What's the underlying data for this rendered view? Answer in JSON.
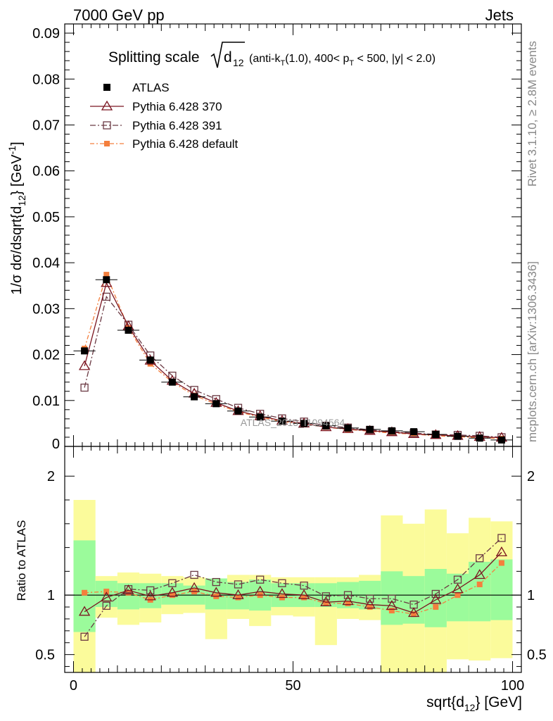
{
  "header": {
    "left": "7000 GeV pp",
    "right": "Jets"
  },
  "side_text": {
    "rivet": "Rivet 3.1.10, ≥ 2.8M events",
    "mcplots": "mcplots.cern.ch [arXiv:1306.3436]"
  },
  "watermark": "ATLAS_2013_I1094564",
  "chart_data": {
    "type": "line",
    "title": "Splitting scale √d12 (anti-kT(1.0), 400< pT < 500, |y| < 2.0)",
    "title_parts": {
      "prefix": "Splitting scale",
      "sqrt_arg": "d",
      "sqrt_sub": "12",
      "rest": "(anti-k",
      "sub_T1": "T",
      "rest2": "(1.0), 400< p",
      "sub_T2": "T",
      "rest3": " < 500, |y| < 2.0)"
    },
    "xlabel": "sqrt{d12} [GeV]",
    "xlabel_parts": {
      "main": "sqrt{d",
      "sub": "12",
      "end": "} [GeV]"
    },
    "ylabel": "1/σ dσ/dsqrt{d12} [GeV^-1]",
    "ylabel_parts": {
      "main": "1/σ dσ/dsqrt{d",
      "sub": "12",
      "mid": "} [GeV",
      "sup": "-1",
      "end": "]"
    },
    "ratio_ylabel": "Ratio to ATLAS",
    "xlim": [
      -2,
      102
    ],
    "ylim": [
      0,
      0.092
    ],
    "ratio_ylim": [
      0.35,
      2.25
    ],
    "x_ticks": [
      0,
      50,
      100
    ],
    "x_tick_labels": [
      "0",
      "50",
      "100"
    ],
    "y_ticks": [
      0.01,
      0.02,
      0.03,
      0.04,
      0.05,
      0.06,
      0.07,
      0.08,
      0.09
    ],
    "y_tick_labels": [
      "0.01",
      "0.02",
      "0.03",
      "0.04",
      "0.05",
      "0.06",
      "0.07",
      "0.08",
      "0.09"
    ],
    "y_zero_label": "0",
    "ratio_ticks": [
      0.5,
      1,
      2
    ],
    "ratio_tick_labels": [
      "0.5",
      "1",
      "2"
    ],
    "legend_position": "top-left",
    "x": [
      2.5,
      7.5,
      12.5,
      17.5,
      22.5,
      27.5,
      32.5,
      37.5,
      42.5,
      47.5,
      52.5,
      57.5,
      62.5,
      67.5,
      72.5,
      77.5,
      82.5,
      87.5,
      92.5,
      97.5
    ],
    "series": [
      {
        "name": "ATLAS",
        "color": "#000000",
        "values": [
          0.0208,
          0.0363,
          0.0253,
          0.0188,
          0.014,
          0.0108,
          0.0093,
          0.0077,
          0.0064,
          0.0055,
          0.005,
          0.0045,
          0.004,
          0.0037,
          0.0034,
          0.0032,
          0.0026,
          0.0022,
          0.0018,
          0.0014
        ],
        "ratio": [
          1,
          1,
          1,
          1,
          1,
          1,
          1,
          1,
          1,
          1,
          1,
          1,
          1,
          1,
          1,
          1,
          1,
          1,
          1,
          1
        ]
      },
      {
        "name": "Pythia 6.428 370",
        "color": "#7b1520",
        "values": [
          0.0175,
          0.0356,
          0.0262,
          0.0187,
          0.0143,
          0.0115,
          0.0095,
          0.0077,
          0.0066,
          0.0056,
          0.005,
          0.0042,
          0.0038,
          0.0034,
          0.0031,
          0.0027,
          0.0025,
          0.0023,
          0.0021,
          0.0019
        ],
        "ratio": [
          0.86,
          0.98,
          1.04,
          0.99,
          1.02,
          1.06,
          1.02,
          1.0,
          1.03,
          1.01,
          1.0,
          0.94,
          0.95,
          0.92,
          0.91,
          0.85,
          0.96,
          1.05,
          1.17,
          1.36
        ]
      },
      {
        "name": "Pythia 6.428 391",
        "color": "#6b3a44",
        "values": [
          0.0128,
          0.0326,
          0.0265,
          0.0198,
          0.0154,
          0.0123,
          0.0103,
          0.0084,
          0.0071,
          0.0061,
          0.0054,
          0.0045,
          0.0041,
          0.0036,
          0.0032,
          0.0029,
          0.0026,
          0.0025,
          0.0023,
          0.002
        ],
        "ratio": [
          0.65,
          0.91,
          1.05,
          1.04,
          1.1,
          1.17,
          1.11,
          1.09,
          1.13,
          1.1,
          1.08,
          0.99,
          1.0,
          0.97,
          0.97,
          0.92,
          1.01,
          1.13,
          1.31,
          1.48
        ]
      },
      {
        "name": "Pythia 6.428 default",
        "color": "#f47f3d",
        "values": [
          0.0213,
          0.0374,
          0.0258,
          0.018,
          0.014,
          0.0111,
          0.0092,
          0.0075,
          0.0064,
          0.0054,
          0.0049,
          0.0042,
          0.0037,
          0.0033,
          0.0029,
          0.0027,
          0.0023,
          0.0021,
          0.0019,
          0.0017
        ],
        "ratio": [
          1.02,
          1.03,
          1.02,
          0.96,
          1.0,
          1.03,
          0.99,
          0.98,
          1.0,
          0.98,
          0.98,
          0.93,
          0.93,
          0.9,
          0.87,
          0.84,
          0.9,
          1.0,
          1.09,
          1.27
        ]
      }
    ],
    "band_colors": {
      "inner": "#9bfb9b",
      "outer": "#fbfb9b"
    },
    "bands": [
      {
        "x0": 0,
        "x1": 5,
        "inner": [
          0.69,
          1.46
        ],
        "outer": [
          0.35,
          1.8
        ]
      },
      {
        "x0": 5,
        "x1": 10,
        "inner": [
          0.9,
          1.12
        ],
        "outer": [
          0.81,
          1.16
        ]
      },
      {
        "x0": 10,
        "x1": 15,
        "inner": [
          0.88,
          1.1
        ],
        "outer": [
          0.75,
          1.19
        ]
      },
      {
        "x0": 15,
        "x1": 20,
        "inner": [
          0.89,
          1.1
        ],
        "outer": [
          0.77,
          1.18
        ]
      },
      {
        "x0": 20,
        "x1": 25,
        "inner": [
          0.92,
          1.1
        ],
        "outer": [
          0.84,
          1.16
        ]
      },
      {
        "x0": 25,
        "x1": 30,
        "inner": [
          0.92,
          1.08
        ],
        "outer": [
          0.85,
          1.15
        ]
      },
      {
        "x0": 30,
        "x1": 35,
        "inner": [
          0.88,
          1.14
        ],
        "outer": [
          0.63,
          1.14
        ]
      },
      {
        "x0": 35,
        "x1": 40,
        "inner": [
          0.88,
          1.11
        ],
        "outer": [
          0.8,
          1.17
        ]
      },
      {
        "x0": 40,
        "x1": 45,
        "inner": [
          0.87,
          1.13
        ],
        "outer": [
          0.74,
          1.17
        ]
      },
      {
        "x0": 45,
        "x1": 50,
        "inner": [
          0.9,
          1.1
        ],
        "outer": [
          0.83,
          1.15
        ]
      },
      {
        "x0": 50,
        "x1": 55,
        "inner": [
          0.9,
          1.1
        ],
        "outer": [
          0.82,
          1.15
        ]
      },
      {
        "x0": 55,
        "x1": 60,
        "inner": [
          0.9,
          1.1
        ],
        "outer": [
          0.58,
          1.15
        ]
      },
      {
        "x0": 60,
        "x1": 65,
        "inner": [
          0.89,
          1.11
        ],
        "outer": [
          0.8,
          1.15
        ]
      },
      {
        "x0": 65,
        "x1": 70,
        "inner": [
          0.88,
          1.12
        ],
        "outer": [
          0.79,
          1.17
        ]
      },
      {
        "x0": 70,
        "x1": 75,
        "inner": [
          0.75,
          1.2
        ],
        "outer": [
          0.35,
          1.67
        ]
      },
      {
        "x0": 75,
        "x1": 80,
        "inner": [
          0.76,
          1.16
        ],
        "outer": [
          0.35,
          1.6
        ]
      },
      {
        "x0": 80,
        "x1": 85,
        "inner": [
          0.73,
          1.22
        ],
        "outer": [
          0.35,
          1.72
        ]
      },
      {
        "x0": 85,
        "x1": 90,
        "inner": [
          0.78,
          1.18
        ],
        "outer": [
          0.46,
          1.52
        ]
      },
      {
        "x0": 90,
        "x1": 95,
        "inner": [
          0.78,
          1.28
        ],
        "outer": [
          0.45,
          1.65
        ]
      },
      {
        "x0": 95,
        "x1": 100,
        "inner": [
          0.79,
          1.3
        ],
        "outer": [
          0.47,
          1.62
        ]
      }
    ]
  }
}
